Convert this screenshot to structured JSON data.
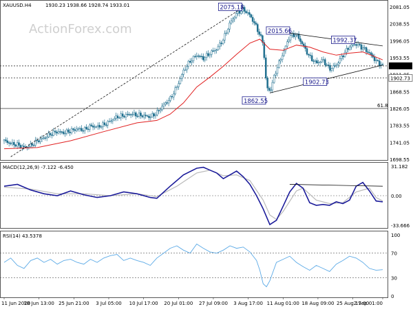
{
  "chart_data": [
    {
      "type": "candlestick",
      "header": {
        "symbol": "XAUUSD.H4",
        "ohlc": "1930.23 1938.66 1928.74 1933.01"
      },
      "watermark": "ActionForex.com",
      "yticks": [
        "2081.05",
        "2038.55",
        "1996.05",
        "1953.55",
        "1911.05",
        "1868.55",
        "1826.05",
        "1783.55",
        "1741.05",
        "1698.55"
      ],
      "ylim": [
        1690,
        2090
      ],
      "current_price": "1933.01",
      "support_level": "1902.73",
      "fib_level": {
        "label": "61.8",
        "value": 1826.05
      },
      "annotations": [
        {
          "label": "2075.18",
          "date": "6 Aug",
          "value": 2075.18
        },
        {
          "label": "2015.66",
          "date": "13 Aug",
          "value": 2015.66
        },
        {
          "label": "1992.37",
          "date": "31 Aug",
          "value": 1992.37
        },
        {
          "label": "1902.73",
          "date": "27 Aug",
          "value": 1902.73
        },
        {
          "label": "1862.55",
          "date": "11 Aug",
          "value": 1862.55
        }
      ],
      "close_path": [
        [
          0,
          1745
        ],
        [
          2,
          1738
        ],
        [
          4,
          1735
        ],
        [
          6,
          1728
        ],
        [
          8,
          1733
        ],
        [
          10,
          1745
        ],
        [
          12,
          1752
        ],
        [
          14,
          1762
        ],
        [
          16,
          1768
        ],
        [
          18,
          1765
        ],
        [
          20,
          1770
        ],
        [
          22,
          1775
        ],
        [
          24,
          1772
        ],
        [
          26,
          1782
        ],
        [
          28,
          1780
        ],
        [
          30,
          1785
        ],
        [
          32,
          1795
        ],
        [
          34,
          1805
        ],
        [
          36,
          1808
        ],
        [
          38,
          1812
        ],
        [
          40,
          1810
        ],
        [
          42,
          1808
        ],
        [
          44,
          1805
        ],
        [
          46,
          1815
        ],
        [
          48,
          1835
        ],
        [
          50,
          1850
        ],
        [
          52,
          1880
        ],
        [
          54,
          1920
        ],
        [
          56,
          1945
        ],
        [
          58,
          1960
        ],
        [
          60,
          1952
        ],
        [
          62,
          1965
        ],
        [
          64,
          1975
        ],
        [
          66,
          2000
        ],
        [
          68,
          2040
        ],
        [
          70,
          2065
        ],
        [
          72,
          2075
        ],
        [
          74,
          2060
        ],
        [
          76,
          2030
        ],
        [
          78,
          1990
        ],
        [
          79,
          1880
        ],
        [
          80,
          1868
        ],
        [
          82,
          1925
        ],
        [
          84,
          1965
        ],
        [
          86,
          2008
        ],
        [
          88,
          2012
        ],
        [
          90,
          1985
        ],
        [
          92,
          1955
        ],
        [
          94,
          1940
        ],
        [
          96,
          1948
        ],
        [
          98,
          1925
        ],
        [
          100,
          1935
        ],
        [
          102,
          1960
        ],
        [
          104,
          1982
        ],
        [
          106,
          1988
        ],
        [
          108,
          1978
        ],
        [
          110,
          1965
        ],
        [
          112,
          1945
        ],
        [
          114,
          1933
        ]
      ],
      "ma_path": [
        [
          0,
          1725
        ],
        [
          10,
          1728
        ],
        [
          20,
          1745
        ],
        [
          30,
          1768
        ],
        [
          40,
          1790
        ],
        [
          46,
          1796
        ],
        [
          50,
          1812
        ],
        [
          54,
          1840
        ],
        [
          58,
          1880
        ],
        [
          62,
          1905
        ],
        [
          66,
          1932
        ],
        [
          70,
          1962
        ],
        [
          74,
          1990
        ],
        [
          77,
          2000
        ],
        [
          80,
          1975
        ],
        [
          84,
          1972
        ],
        [
          88,
          1985
        ],
        [
          92,
          1980
        ],
        [
          96,
          1968
        ],
        [
          100,
          1960
        ],
        [
          104,
          1965
        ],
        [
          108,
          1968
        ],
        [
          112,
          1955
        ],
        [
          114,
          1948
        ]
      ],
      "trendlines": [
        {
          "style": "dashed",
          "from": [
            2,
            1705
          ],
          "to": [
            72,
            2080
          ]
        },
        {
          "style": "solid",
          "from": [
            80,
            1865
          ],
          "to": [
            114,
            1935
          ]
        },
        {
          "style": "solid",
          "from": [
            86,
            2015
          ],
          "to": [
            114,
            1983
          ]
        }
      ]
    },
    {
      "type": "line",
      "title": "MACD(12,26,9) -7.122 -6.450",
      "yticks": [
        "31.182",
        "0.00",
        "-33.666"
      ],
      "ylim": [
        -38,
        36
      ],
      "series": [
        {
          "name": "MACD",
          "values": [
            [
              0,
              10
            ],
            [
              4,
              12
            ],
            [
              8,
              6
            ],
            [
              12,
              2
            ],
            [
              16,
              0
            ],
            [
              20,
              5
            ],
            [
              24,
              1
            ],
            [
              28,
              -2
            ],
            [
              32,
              0
            ],
            [
              36,
              4
            ],
            [
              40,
              2
            ],
            [
              44,
              -2
            ],
            [
              46,
              -3
            ],
            [
              50,
              10
            ],
            [
              54,
              22
            ],
            [
              58,
              29
            ],
            [
              60,
              30
            ],
            [
              62,
              27
            ],
            [
              64,
              24
            ],
            [
              66,
              18
            ],
            [
              68,
              22
            ],
            [
              70,
              26
            ],
            [
              72,
              20
            ],
            [
              74,
              12
            ],
            [
              76,
              0
            ],
            [
              78,
              -15
            ],
            [
              80,
              -33
            ],
            [
              82,
              -28
            ],
            [
              84,
              -12
            ],
            [
              86,
              4
            ],
            [
              88,
              13
            ],
            [
              90,
              8
            ],
            [
              92,
              -8
            ],
            [
              94,
              -11
            ],
            [
              96,
              -10
            ],
            [
              98,
              -11
            ],
            [
              100,
              -7
            ],
            [
              102,
              -9
            ],
            [
              104,
              -5
            ],
            [
              106,
              10
            ],
            [
              108,
              14
            ],
            [
              110,
              5
            ],
            [
              112,
              -6
            ],
            [
              114,
              -7
            ]
          ]
        },
        {
          "name": "Signal",
          "values": [
            [
              0,
              9
            ],
            [
              8,
              7
            ],
            [
              16,
              2
            ],
            [
              24,
              2
            ],
            [
              32,
              0
            ],
            [
              40,
              2
            ],
            [
              46,
              -1
            ],
            [
              52,
              10
            ],
            [
              58,
              24
            ],
            [
              62,
              27
            ],
            [
              66,
              21
            ],
            [
              70,
              22
            ],
            [
              74,
              16
            ],
            [
              78,
              -5
            ],
            [
              80,
              -22
            ],
            [
              82,
              -27
            ],
            [
              84,
              -18
            ],
            [
              88,
              5
            ],
            [
              90,
              8
            ],
            [
              94,
              -5
            ],
            [
              98,
              -9
            ],
            [
              102,
              -8
            ],
            [
              106,
              4
            ],
            [
              110,
              8
            ],
            [
              112,
              -2
            ],
            [
              114,
              -6
            ]
          ]
        }
      ],
      "divergence_line": {
        "from": [
          86,
          12
        ],
        "to": [
          114,
          10
        ]
      }
    },
    {
      "type": "line",
      "title": "RSI(14) 43.5378",
      "yticks": [
        "100",
        "70",
        "30",
        "0"
      ],
      "ylim": [
        0,
        100
      ],
      "series": [
        {
          "name": "RSI",
          "values": [
            [
              0,
              55
            ],
            [
              2,
              62
            ],
            [
              4,
              50
            ],
            [
              6,
              45
            ],
            [
              8,
              58
            ],
            [
              10,
              62
            ],
            [
              12,
              55
            ],
            [
              14,
              60
            ],
            [
              16,
              52
            ],
            [
              18,
              58
            ],
            [
              20,
              60
            ],
            [
              22,
              55
            ],
            [
              24,
              52
            ],
            [
              26,
              60
            ],
            [
              28,
              55
            ],
            [
              30,
              62
            ],
            [
              32,
              66
            ],
            [
              34,
              68
            ],
            [
              36,
              58
            ],
            [
              38,
              62
            ],
            [
              40,
              58
            ],
            [
              42,
              55
            ],
            [
              44,
              50
            ],
            [
              46,
              62
            ],
            [
              48,
              70
            ],
            [
              50,
              78
            ],
            [
              52,
              82
            ],
            [
              54,
              75
            ],
            [
              56,
              70
            ],
            [
              58,
              85
            ],
            [
              60,
              78
            ],
            [
              62,
              72
            ],
            [
              64,
              70
            ],
            [
              66,
              75
            ],
            [
              68,
              82
            ],
            [
              70,
              78
            ],
            [
              72,
              80
            ],
            [
              74,
              72
            ],
            [
              76,
              58
            ],
            [
              77,
              42
            ],
            [
              78,
              20
            ],
            [
              79,
              15
            ],
            [
              80,
              25
            ],
            [
              82,
              55
            ],
            [
              84,
              60
            ],
            [
              86,
              65
            ],
            [
              88,
              55
            ],
            [
              90,
              48
            ],
            [
              92,
              42
            ],
            [
              94,
              50
            ],
            [
              96,
              45
            ],
            [
              98,
              40
            ],
            [
              100,
              52
            ],
            [
              102,
              58
            ],
            [
              104,
              65
            ],
            [
              106,
              62
            ],
            [
              108,
              55
            ],
            [
              110,
              45
            ],
            [
              112,
              42
            ],
            [
              114,
              43
            ]
          ]
        }
      ]
    }
  ],
  "xaxis": {
    "labels": [
      "11 Jun 2020",
      "18 Jun 13:00",
      "25 Jun 21:00",
      "3 Jul 05:00",
      "10 Jul 17:00",
      "20 Jul 01:00",
      "27 Jul 09:00",
      "3 Aug 17:00",
      "11 Aug 01:00",
      "18 Aug 09:00",
      "25 Aug 17:00",
      "2 Sep 01:00"
    ],
    "positions": [
      0,
      10.5,
      21,
      31.5,
      42,
      52.5,
      63,
      73.5,
      84,
      94.5,
      105,
      114
    ]
  },
  "colors": {
    "candles": "#1f6f8f",
    "ma": "#e11f1f",
    "macd": "#1b1b9a",
    "signal": "#b9b9b9",
    "rsi": "#5aa9e6",
    "label_box_border": "#1a1a8c",
    "current_price_bg": "#000000"
  }
}
